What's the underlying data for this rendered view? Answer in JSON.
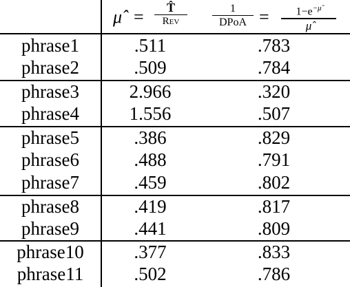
{
  "header": {
    "col1": {
      "lhs": "μ̂",
      "eq": "=",
      "num": "T̂",
      "den": "Rev"
    },
    "col2": {
      "lhs_num": "1",
      "lhs_den": "DPoA",
      "eq": "=",
      "rhs_num": "1−e",
      "rhs_num_sup": "−μ̂",
      "rhs_den": "μ̂"
    }
  },
  "rows": [
    {
      "label": "phrase1",
      "mu": ".511",
      "inv": ".783"
    },
    {
      "label": "phrase2",
      "mu": ".509",
      "inv": ".784"
    },
    {
      "label": "phrase3",
      "mu": "2.966",
      "inv": ".320"
    },
    {
      "label": "phrase4",
      "mu": "1.556",
      "inv": ".507"
    },
    {
      "label": "phrase5",
      "mu": ".386",
      "inv": ".829"
    },
    {
      "label": "phrase6",
      "mu": ".488",
      "inv": ".791"
    },
    {
      "label": "phrase7",
      "mu": ".459",
      "inv": ".802"
    },
    {
      "label": "phrase8",
      "mu": ".419",
      "inv": ".817"
    },
    {
      "label": "phrase9",
      "mu": ".441",
      "inv": ".809"
    },
    {
      "label": "phrase10",
      "mu": ".377",
      "inv": ".833"
    },
    {
      "label": "phrase11",
      "mu": ".502",
      "inv": ".786"
    }
  ]
}
